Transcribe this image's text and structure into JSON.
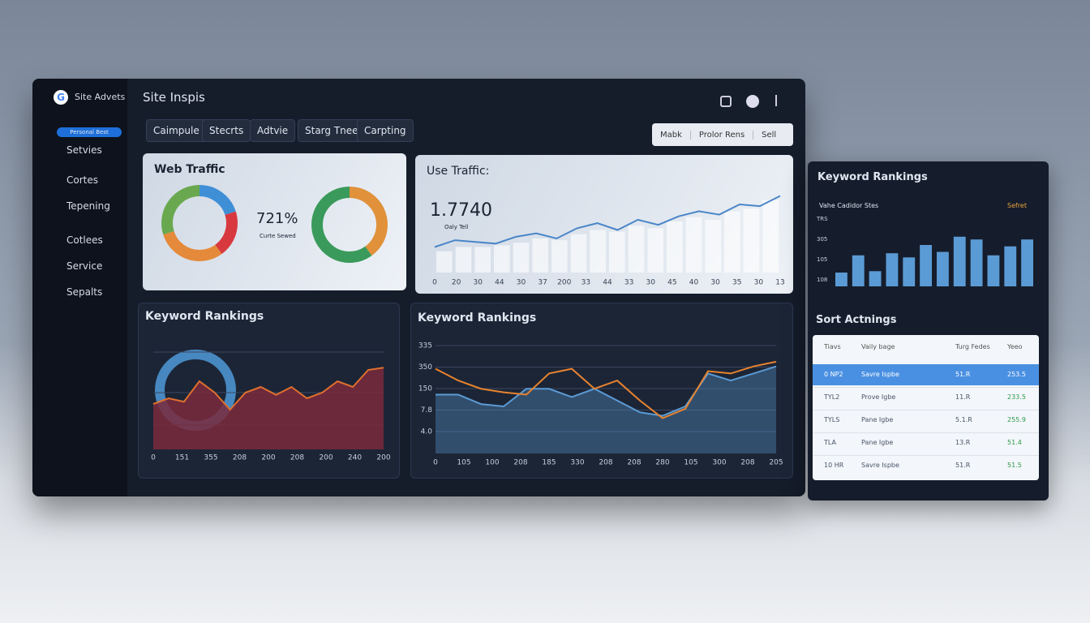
{
  "sidebar": {
    "brand": "Site Advets",
    "badge": "Personal Best",
    "items": [
      "Setvies",
      "Cortes",
      "Tepening",
      "Cotlees",
      "Service",
      "Sepalts"
    ]
  },
  "header": {
    "title": "Site Inspis"
  },
  "tabs": [
    "Caimpule",
    "Stecrts",
    "Adtvie",
    "Starg Tnee",
    "Carpting"
  ],
  "toolbar": [
    "Mabk",
    "Prolor Rens",
    "Sell"
  ],
  "web_traffic": {
    "title": "Web Traffic",
    "value": "721%",
    "legend": "Curte Sewed",
    "donut1": {
      "values": [
        20,
        20,
        30,
        30
      ],
      "colors": [
        "#3f8fd6",
        "#d8393f",
        "#e58a3a",
        "#6aa84f"
      ]
    },
    "donut2": {
      "values": [
        40,
        60
      ],
      "colors": [
        "#e0913a",
        "#3a9a5b"
      ]
    }
  },
  "use_traffic": {
    "title": "Use Traffic:",
    "value": "1.7740",
    "legend": "Oaly Tell",
    "ylim": [
      0,
      100
    ],
    "x_labels": [
      "0",
      "20",
      "30",
      "44",
      "30",
      "37",
      "200",
      "33",
      "44",
      "33",
      "30",
      "45",
      "40",
      "30",
      "35",
      "30",
      "13"
    ],
    "bars": [
      25,
      30,
      30,
      32,
      35,
      40,
      38,
      45,
      50,
      48,
      55,
      52,
      60,
      65,
      62,
      72,
      75,
      85
    ],
    "line": {
      "color": "#4a86c8",
      "values": [
        30,
        38,
        36,
        34,
        42,
        46,
        40,
        52,
        58,
        50,
        62,
        56,
        66,
        72,
        68,
        80,
        78,
        90
      ]
    }
  },
  "keyword_left": {
    "title": "Keyword Rankings",
    "ylim": [
      0,
      100
    ],
    "x_labels": [
      "0",
      "151",
      "355",
      "208",
      "200",
      "208",
      "200",
      "240",
      "200"
    ],
    "area": {
      "color": "#e0702e",
      "fill": "#7a2a3c",
      "values": [
        40,
        45,
        42,
        60,
        50,
        35,
        50,
        55,
        48,
        55,
        45,
        50,
        60,
        55,
        70,
        72
      ]
    }
  },
  "keyword_mid": {
    "title": "Keyword Rankings",
    "ylim": [
      0,
      100
    ],
    "y_labels": [
      "335",
      "350",
      "150",
      "7.8",
      "4.0"
    ],
    "x_labels": [
      "0",
      "105",
      "100",
      "208",
      "185",
      "330",
      "208",
      "208",
      "280",
      "105",
      "300",
      "208",
      "205"
    ],
    "series": [
      {
        "color": "#e8832e",
        "values": [
          72,
          62,
          55,
          52,
          50,
          68,
          72,
          55,
          62,
          45,
          30,
          38,
          70,
          68,
          74,
          78
        ]
      },
      {
        "color": "#5b9bd5",
        "values": [
          50,
          50,
          42,
          40,
          55,
          55,
          48,
          55,
          45,
          35,
          32,
          40,
          68,
          62,
          68,
          74
        ]
      }
    ]
  },
  "right_bars": {
    "title": "Keyword Rankings",
    "subtitle": "Vahe Cadidor Stes",
    "legend": "Sefret",
    "ylim": [
      0,
      100
    ],
    "y_labels": [
      "TRS",
      "305",
      "105",
      "108"
    ],
    "color": "#5b9bd5",
    "values": [
      20,
      45,
      22,
      48,
      42,
      60,
      50,
      72,
      68,
      45,
      58,
      68
    ]
  },
  "sort_table": {
    "title": "Sort Actnings",
    "headers": [
      "Tiavs",
      "Vaily bage",
      "Turg Fedes",
      "Yeeo"
    ],
    "rows": [
      [
        "0 NP2",
        "Savre Ispbe",
        "51.R",
        "253.5"
      ],
      [
        "TYL2",
        "Prove Igbe",
        "11.R",
        "233.5"
      ],
      [
        "TYLS",
        "Pane Igbe",
        "5.1.R",
        "255.9"
      ],
      [
        "TLA",
        "Pane Igbe",
        "13.R",
        "51.4"
      ],
      [
        "10 HR",
        "Savre Ispbe",
        "51.R",
        "51.5"
      ]
    ]
  }
}
